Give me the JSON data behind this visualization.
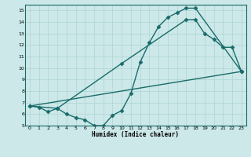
{
  "xlabel": "Humidex (Indice chaleur)",
  "ylabel": "",
  "bg_color": "#cce8e8",
  "grid_color": "#add4d4",
  "line_color": "#1a6b6b",
  "xlim": [
    -0.5,
    23.5
  ],
  "ylim": [
    5,
    15.5
  ],
  "xticks": [
    0,
    1,
    2,
    3,
    4,
    5,
    6,
    7,
    8,
    9,
    10,
    11,
    12,
    13,
    14,
    15,
    16,
    17,
    18,
    19,
    20,
    21,
    22,
    23
  ],
  "yticks": [
    5,
    6,
    7,
    8,
    9,
    10,
    11,
    12,
    13,
    14,
    15
  ],
  "line1_x": [
    0,
    1,
    2,
    3,
    4,
    5,
    6,
    7,
    8,
    9,
    10,
    11,
    12,
    13,
    14,
    15,
    16,
    17,
    18,
    23
  ],
  "line1_y": [
    6.7,
    6.6,
    6.2,
    6.5,
    6.0,
    5.7,
    5.5,
    5.0,
    5.0,
    5.9,
    6.3,
    7.8,
    10.5,
    12.2,
    13.6,
    14.4,
    14.8,
    15.2,
    15.2,
    9.7
  ],
  "line2_x": [
    0,
    3,
    10,
    17,
    18,
    19,
    20,
    21,
    22,
    23
  ],
  "line2_y": [
    6.7,
    6.5,
    10.4,
    14.2,
    14.2,
    13.0,
    12.5,
    11.8,
    11.8,
    9.7
  ],
  "line3_x": [
    0,
    23
  ],
  "line3_y": [
    6.7,
    9.7
  ],
  "marker_size": 2.5,
  "line_width": 1.0
}
